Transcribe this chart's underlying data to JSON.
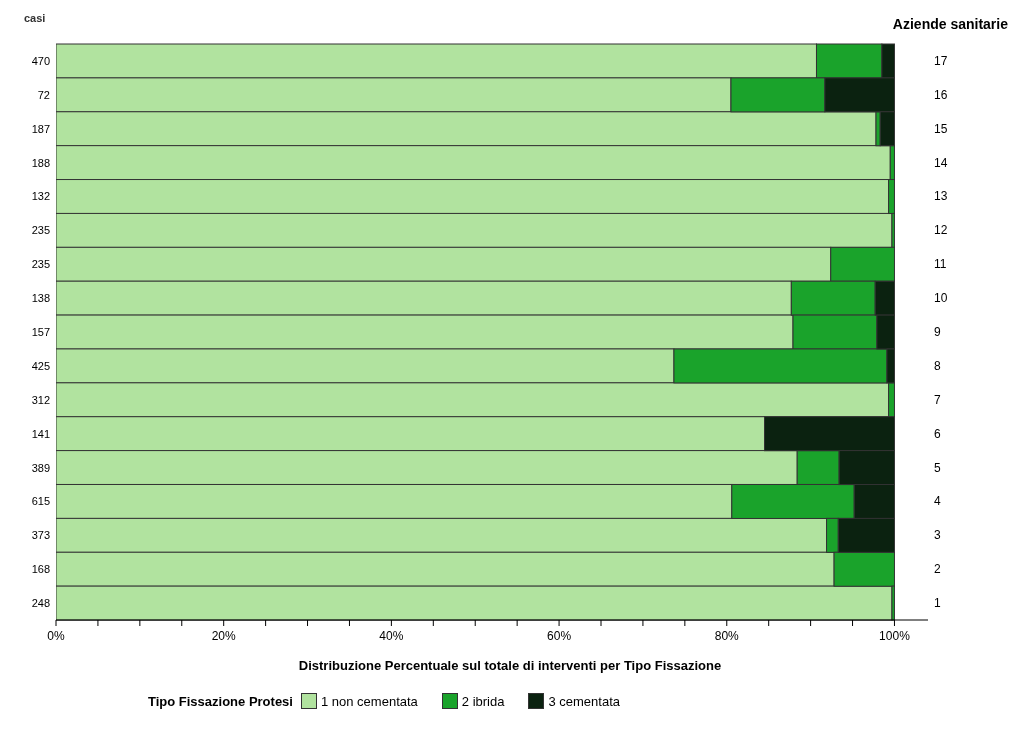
{
  "chart_data": {
    "type": "bar",
    "orientation": "horizontal",
    "stacked": true,
    "ylabel": "casi",
    "y2label": "Aziende sanitarie",
    "xlabel": "Distribuzione Percentuale sul totale di interventi per Tipo Fissazione",
    "legend_title": "Tipo Fissazione Protesi",
    "legend": "bottom",
    "categories": [
      "17",
      "16",
      "15",
      "14",
      "13",
      "12",
      "11",
      "10",
      "9",
      "8",
      "7",
      "6",
      "5",
      "4",
      "3",
      "2",
      "1"
    ],
    "series": [
      {
        "name": "1 non cementata",
        "color": "#b1e39f",
        "values": [
          90.7,
          80.5,
          97.8,
          99.5,
          99.3,
          99.7,
          92.4,
          87.7,
          87.9,
          73.7,
          99.3,
          84.5,
          88.4,
          80.6,
          91.9,
          92.8,
          99.7
        ]
      },
      {
        "name": "2 ibrida",
        "color": "#1aa32b",
        "values": [
          7.8,
          11.2,
          0.5,
          0.5,
          0.7,
          0.3,
          7.6,
          10.0,
          10.0,
          25.4,
          0.7,
          0,
          5.0,
          14.6,
          1.4,
          7.2,
          0.3
        ]
      },
      {
        "name": "3 cementata",
        "color": "#0b2210",
        "values": [
          1.5,
          8.3,
          1.7,
          0,
          0,
          0,
          0,
          2.3,
          2.1,
          0.9,
          0,
          15.5,
          6.6,
          4.8,
          6.7,
          0,
          0
        ]
      }
    ],
    "annotations": [
      "470",
      "72",
      "187",
      "188",
      "132",
      "235",
      "235",
      "138",
      "157",
      "425",
      "312",
      "141",
      "389",
      "615",
      "373",
      "168",
      "248"
    ],
    "xlim": [
      0,
      104
    ],
    "xticks": [
      {
        "value": 0,
        "label": "0%"
      },
      {
        "value": 5,
        "label": null
      },
      {
        "value": 10,
        "label": null
      },
      {
        "value": 15,
        "label": null
      },
      {
        "value": 20,
        "label": "20%"
      },
      {
        "value": 25,
        "label": null
      },
      {
        "value": 30,
        "label": null
      },
      {
        "value": 35,
        "label": null
      },
      {
        "value": 40,
        "label": "40%"
      },
      {
        "value": 45,
        "label": null
      },
      {
        "value": 50,
        "label": null
      },
      {
        "value": 55,
        "label": null
      },
      {
        "value": 60,
        "label": "60%"
      },
      {
        "value": 65,
        "label": null
      },
      {
        "value": 70,
        "label": null
      },
      {
        "value": 75,
        "label": null
      },
      {
        "value": 80,
        "label": "80%"
      },
      {
        "value": 85,
        "label": null
      },
      {
        "value": 90,
        "label": null
      },
      {
        "value": 95,
        "label": null
      },
      {
        "value": 100,
        "label": "100%"
      }
    ]
  }
}
